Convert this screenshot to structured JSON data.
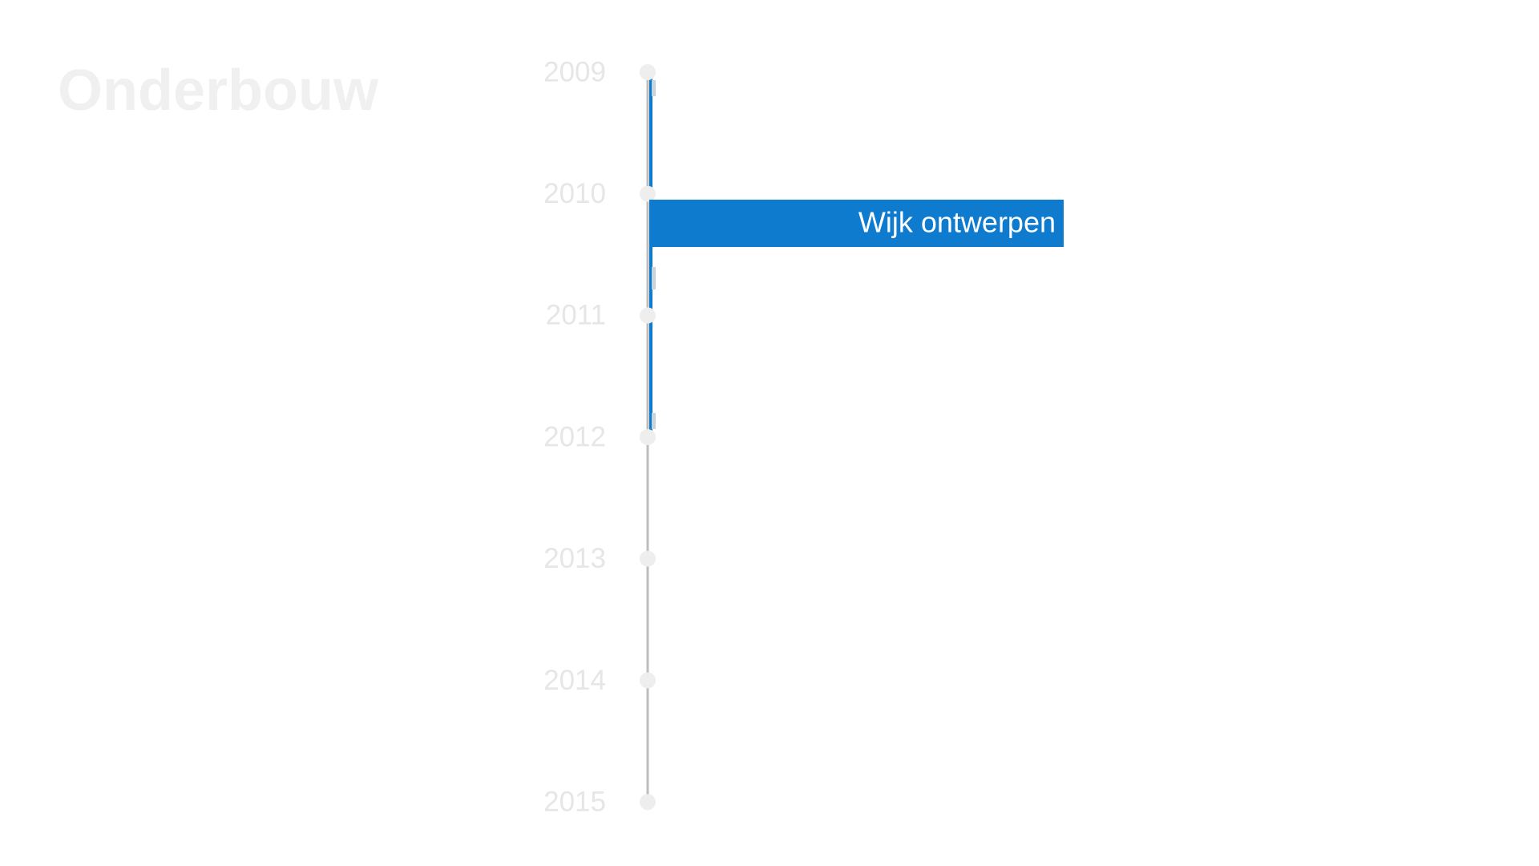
{
  "header": {
    "title": "Onderbouw"
  },
  "timeline": {
    "years": [
      "2009",
      "2010",
      "2011",
      "2012",
      "2013",
      "2014",
      "2015"
    ],
    "bars": [
      {
        "label": "Wijk ontwerpen"
      }
    ]
  }
}
